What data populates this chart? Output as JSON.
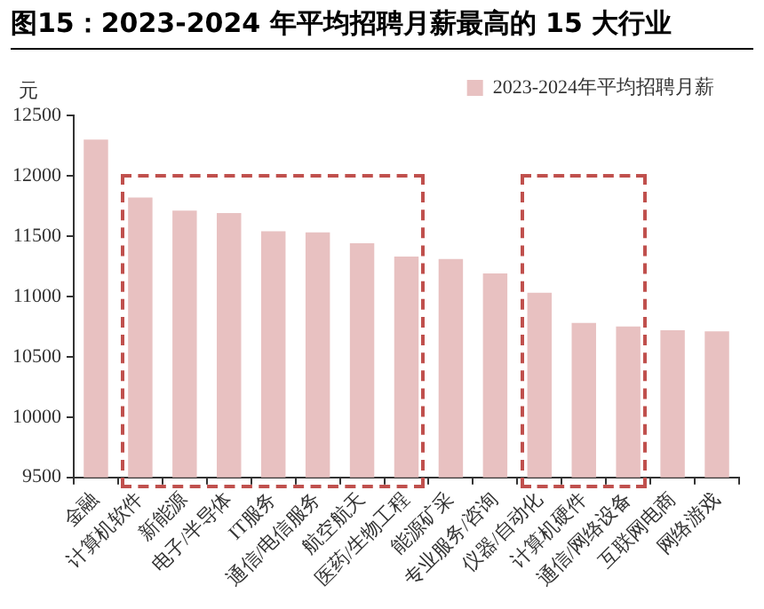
{
  "chart_data": {
    "type": "bar",
    "title": "图15：2023-2024 年平均招聘月薪最高的 15 大行业",
    "ylabel": "元",
    "categories": [
      "金融",
      "计算机软件",
      "新能源",
      "电子/半导体",
      "IT服务",
      "通信/电信服务",
      "航空航天",
      "医药/生物工程",
      "能源矿采",
      "专业服务/咨询",
      "仪器/自动化",
      "计算机硬件",
      "通信/网络设备",
      "互联网电商",
      "网络游戏"
    ],
    "series": [
      {
        "name": "2023-2024年平均招聘月薪",
        "color": "#e8c1c1",
        "values": [
          12300,
          11820,
          11710,
          11690,
          11540,
          11530,
          11440,
          11330,
          11310,
          11190,
          11030,
          10780,
          10750,
          10720,
          10710
        ]
      }
    ],
    "ylim": [
      9500,
      12500
    ],
    "yticks": [
      9500,
      10000,
      10500,
      11000,
      11500,
      12000,
      12500
    ],
    "grid": false,
    "legend": "top"
  }
}
